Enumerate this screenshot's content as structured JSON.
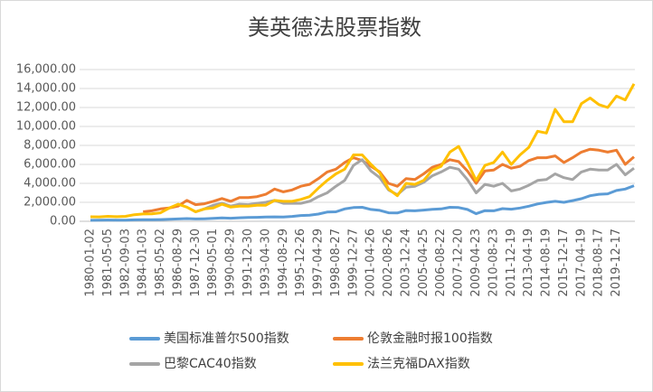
{
  "chart_data": {
    "type": "line",
    "title": "美英德法股票指数",
    "categories": [
      "1980-01-02",
      null,
      "1981-05-05",
      null,
      "1982-09-03",
      null,
      "1984-01-03",
      null,
      "1985-05-02",
      null,
      "1986-08-29",
      null,
      "1987-12-30",
      null,
      "1989-05-01",
      null,
      "1990-08-29",
      null,
      "1991-12-30",
      null,
      "1993-04-30",
      null,
      "1994-08-29",
      null,
      "1995-12-26",
      null,
      "1997-04-29",
      null,
      "1998-08-27",
      null,
      "1999-12-27",
      null,
      "2001-04-26",
      null,
      "2002-08-26",
      null,
      "2003-12-24",
      null,
      "2005-04-25",
      null,
      "2006-08-22",
      null,
      "2007-12-20",
      null,
      "2009-04-23",
      null,
      "2010-08-23",
      null,
      "2011-12-19",
      null,
      "2013-04-19",
      null,
      "2014-08-19",
      null,
      "2015-12-17",
      null,
      "2017-04-19",
      null,
      "2018-08-17",
      null,
      "2019-12-17",
      null,
      null
    ],
    "series": [
      {
        "name": "美国标准普尔500指数",
        "color": "#5b9bd5",
        "values": [
          106,
          125,
          133,
          120,
          120,
          155,
          165,
          165,
          180,
          210,
          250,
          290,
          250,
          270,
          300,
          350,
          320,
          375,
          410,
          415,
          445,
          470,
          460,
          510,
          610,
          650,
          760,
          970,
          1000,
          1300,
          1450,
          1480,
          1250,
          1150,
          900,
          880,
          1130,
          1100,
          1180,
          1270,
          1300,
          1480,
          1450,
          1250,
          800,
          1120,
          1100,
          1330,
          1280,
          1400,
          1590,
          1830,
          1990,
          2100,
          2000,
          2180,
          2380,
          2700,
          2850,
          2900,
          3250,
          3400,
          3750
        ]
      },
      {
        "name": "伦敦金融时报100指数",
        "color": "#ed7d31",
        "values": [
          null,
          null,
          null,
          null,
          null,
          null,
          1000,
          1100,
          1300,
          1400,
          1600,
          2200,
          1750,
          1850,
          2100,
          2400,
          2100,
          2500,
          2500,
          2600,
          2850,
          3400,
          3100,
          3300,
          3700,
          3900,
          4500,
          5200,
          5500,
          6200,
          6700,
          6400,
          5800,
          5200,
          4000,
          3700,
          4500,
          4400,
          5000,
          5700,
          6000,
          6500,
          6300,
          5300,
          4000,
          5300,
          5400,
          6000,
          5600,
          5800,
          6400,
          6700,
          6700,
          6900,
          6200,
          6700,
          7300,
          7600,
          7500,
          7300,
          7500,
          6000,
          6800
        ]
      },
      {
        "name": "巴黎CAC40指数",
        "color": "#a5a5a5",
        "values": [
          null,
          null,
          null,
          null,
          null,
          null,
          null,
          null,
          null,
          null,
          null,
          null,
          1000,
          1300,
          1700,
          1900,
          1600,
          1800,
          1750,
          1900,
          2000,
          2200,
          1900,
          1900,
          1900,
          2100,
          2600,
          3000,
          3700,
          4300,
          5900,
          6500,
          5300,
          4600,
          3300,
          2800,
          3600,
          3700,
          4100,
          4800,
          5200,
          5700,
          5500,
          4400,
          3000,
          3900,
          3700,
          4000,
          3200,
          3400,
          3800,
          4300,
          4400,
          5000,
          4600,
          4400,
          5200,
          5500,
          5400,
          5400,
          6000,
          4900,
          5600
        ]
      },
      {
        "name": "法兰克福DAX指数",
        "color": "#ffc000",
        "values": [
          480,
          470,
          520,
          490,
          520,
          700,
          770,
          780,
          900,
          1400,
          1800,
          1500,
          1000,
          1300,
          1400,
          1800,
          1500,
          1600,
          1600,
          1700,
          1700,
          2200,
          2100,
          2100,
          2300,
          2600,
          3500,
          4300,
          5000,
          5500,
          7000,
          7000,
          6000,
          5100,
          3400,
          2700,
          4000,
          3900,
          4300,
          5400,
          5800,
          7300,
          7900,
          6200,
          4300,
          5900,
          6200,
          7300,
          6000,
          7000,
          7800,
          9500,
          9300,
          11800,
          10500,
          10500,
          12400,
          13000,
          12300,
          12000,
          13200,
          12800,
          14500
        ]
      }
    ],
    "ylim": [
      0,
      16000
    ],
    "yticks": [
      {
        "value": 0,
        "label": "0.00"
      },
      {
        "value": 2000,
        "label": "2,000.00"
      },
      {
        "value": 4000,
        "label": "4,000.00"
      },
      {
        "value": 6000,
        "label": "6,000.00"
      },
      {
        "value": 8000,
        "label": "8,000.00"
      },
      {
        "value": 10000,
        "label": "10,000.00"
      },
      {
        "value": 12000,
        "label": "12,000.00"
      },
      {
        "value": 14000,
        "label": "14,000.00"
      },
      {
        "value": 16000,
        "label": "16,000.00"
      }
    ],
    "grid": true
  }
}
